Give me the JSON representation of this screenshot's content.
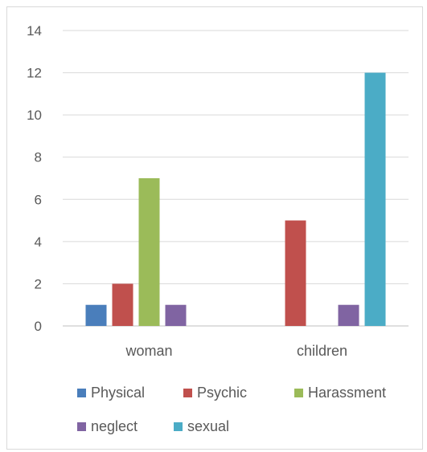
{
  "chart_data": {
    "type": "bar",
    "categories": [
      "woman",
      "children"
    ],
    "series": [
      {
        "name": "Physical",
        "color": "#4a7ebb",
        "values": [
          1,
          null
        ]
      },
      {
        "name": "Psychic",
        "color": "#c0504d",
        "values": [
          2,
          5
        ]
      },
      {
        "name": "Harassment",
        "color": "#9bbb59",
        "values": [
          7,
          null
        ]
      },
      {
        "name": "neglect",
        "color": "#8064a2",
        "values": [
          1,
          1
        ]
      },
      {
        "name": "sexual",
        "color": "#4bacc6",
        "values": [
          null,
          12
        ]
      }
    ],
    "yticks": [
      "0",
      "2",
      "4",
      "6",
      "8",
      "10",
      "12",
      "14"
    ],
    "ylim": [
      0,
      14
    ],
    "grid": true,
    "legend_position": "bottom",
    "legend_rows": [
      [
        "Physical",
        "Psychic",
        "Harassment"
      ],
      [
        "neglect",
        "sexual"
      ]
    ]
  }
}
